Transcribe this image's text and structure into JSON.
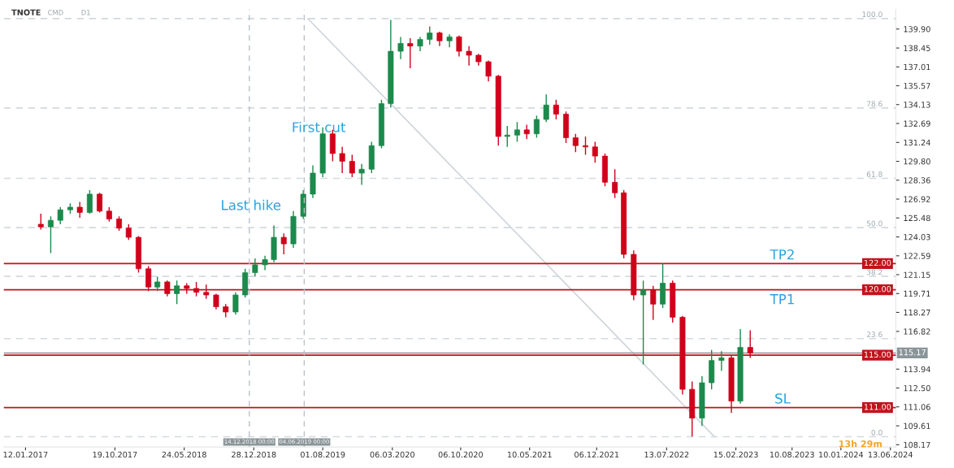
{
  "chart_data": {
    "type": "candlestick",
    "title": "TNOTE",
    "annotations": [
      "CMD",
      "D1",
      "13h 29m",
      "Last hike",
      "First cut",
      "TP2",
      "TP1",
      "SL",
      {
        "text": "100.0",
        "x": "2024-05-20",
        "y": 140.7
      },
      {
        "text": "78.6",
        "x": "2024-05-20",
        "y": 133.87
      },
      {
        "text": "61.8",
        "x": "2024-05-20",
        "y": 128.5
      },
      {
        "text": "50.0",
        "x": "2024-05-20",
        "y": 124.74
      },
      {
        "text": "38.2",
        "x": "2024-05-20",
        "y": 121.02
      },
      {
        "text": "23.6",
        "x": "2024-05-20",
        "y": 116.27
      },
      {
        "text": "0.0",
        "x": "2024-05-20",
        "y": 108.78
      }
    ],
    "series": [
      {
        "type": "line",
        "color": "#cfd6dc",
        "x": [
          "2019-06-15",
          "2022-12-10"
        ],
        "values": [
          140.7,
          108.78
        ]
      },
      {
        "x": [
          "2017-03",
          "2017-04",
          "2017-05",
          "2017-06",
          "2017-07",
          "2017-08",
          "2017-09",
          "2017-10",
          "2017-11",
          "2017-12",
          "2018-01",
          "2018-02",
          "2018-03",
          "2018-04",
          "2018-05",
          "2018-06",
          "2018-07",
          "2018-08",
          "2018-09",
          "2018-10",
          "2018-11",
          "2018-12",
          "2019-01",
          "2019-02",
          "2019-03",
          "2019-04",
          "2019-05",
          "2019-06",
          "2019-07",
          "2019-08",
          "2019-09",
          "2019-10",
          "2019-11",
          "2019-12",
          "2020-01",
          "2020-02",
          "2020-03",
          "2020-04",
          "2020-05",
          "2020-06",
          "2020-07",
          "2020-08",
          "2020-09",
          "2020-10",
          "2020-11",
          "2020-12",
          "2021-01",
          "2021-02",
          "2021-03",
          "2021-04",
          "2021-05",
          "2021-06",
          "2021-07",
          "2021-08",
          "2021-09",
          "2021-10",
          "2021-11",
          "2021-12",
          "2022-01",
          "2022-02",
          "2022-03",
          "2022-04",
          "2022-05",
          "2022-06",
          "2022-07",
          "2022-08",
          "2022-09",
          "2022-10",
          "2022-11",
          "2022-12",
          "2023-01",
          "2023-02",
          "2023-03",
          "2023-04"
        ],
        "ohlc": [
          [
            125.0,
            125.8,
            124.6,
            124.8
          ],
          [
            124.8,
            125.6,
            122.8,
            125.3
          ],
          [
            125.3,
            126.3,
            125.0,
            126.1
          ],
          [
            126.1,
            126.6,
            125.8,
            126.3
          ],
          [
            126.3,
            126.7,
            125.5,
            125.9
          ],
          [
            125.9,
            127.6,
            125.8,
            127.3
          ],
          [
            127.3,
            127.4,
            125.9,
            126.0
          ],
          [
            126.0,
            126.3,
            125.2,
            125.4
          ],
          [
            125.4,
            125.6,
            124.5,
            124.7
          ],
          [
            124.7,
            125.0,
            123.8,
            124.0
          ],
          [
            124.0,
            124.1,
            121.3,
            121.6
          ],
          [
            121.6,
            121.8,
            119.9,
            120.2
          ],
          [
            120.2,
            121.0,
            119.9,
            120.6
          ],
          [
            120.6,
            120.7,
            119.5,
            119.7
          ],
          [
            119.7,
            120.7,
            118.9,
            120.3
          ],
          [
            120.3,
            120.5,
            119.7,
            120.1
          ],
          [
            120.1,
            120.6,
            119.5,
            119.8
          ],
          [
            119.8,
            120.4,
            119.3,
            119.6
          ],
          [
            119.6,
            119.7,
            118.5,
            118.7
          ],
          [
            118.7,
            118.9,
            117.9,
            118.3
          ],
          [
            118.3,
            119.8,
            118.1,
            119.6
          ],
          [
            119.6,
            121.6,
            119.4,
            121.3
          ],
          [
            121.3,
            122.4,
            121.0,
            121.9
          ],
          [
            121.9,
            122.6,
            121.5,
            122.3
          ],
          [
            122.3,
            124.9,
            122.1,
            124.0
          ],
          [
            124.0,
            124.3,
            122.7,
            123.5
          ],
          [
            123.5,
            126.0,
            123.2,
            125.6
          ],
          [
            125.6,
            127.6,
            125.4,
            127.3
          ],
          [
            127.3,
            129.5,
            127.0,
            128.9
          ],
          [
            128.9,
            132.4,
            128.6,
            131.9
          ],
          [
            131.9,
            132.2,
            129.8,
            130.4
          ],
          [
            130.4,
            130.9,
            128.9,
            129.8
          ],
          [
            129.8,
            130.3,
            128.6,
            128.9
          ],
          [
            128.9,
            129.6,
            128.0,
            129.2
          ],
          [
            129.2,
            131.3,
            128.9,
            131.0
          ],
          [
            131.0,
            134.5,
            130.8,
            134.2
          ],
          [
            134.2,
            140.6,
            133.9,
            138.2
          ],
          [
            138.2,
            139.3,
            137.6,
            138.8
          ],
          [
            138.8,
            139.2,
            136.9,
            138.6
          ],
          [
            138.6,
            139.3,
            138.2,
            139.1
          ],
          [
            139.1,
            140.1,
            138.7,
            139.6
          ],
          [
            139.6,
            139.7,
            138.6,
            139.0
          ],
          [
            139.0,
            139.5,
            138.5,
            139.3
          ],
          [
            139.3,
            139.4,
            137.8,
            138.2
          ],
          [
            138.2,
            138.6,
            137.1,
            137.9
          ],
          [
            137.9,
            138.0,
            137.1,
            137.4
          ],
          [
            137.4,
            137.5,
            135.9,
            136.3
          ],
          [
            136.3,
            136.4,
            131.0,
            131.7
          ],
          [
            131.7,
            132.5,
            130.9,
            131.8
          ],
          [
            131.8,
            132.8,
            131.3,
            132.2
          ],
          [
            132.2,
            132.6,
            131.5,
            131.9
          ],
          [
            131.9,
            133.3,
            131.6,
            133.0
          ],
          [
            133.0,
            134.9,
            132.8,
            134.1
          ],
          [
            134.1,
            134.5,
            133.0,
            133.4
          ],
          [
            133.4,
            133.6,
            131.2,
            131.6
          ],
          [
            131.6,
            131.9,
            130.5,
            131.0
          ],
          [
            131.0,
            131.7,
            130.3,
            130.9
          ],
          [
            130.9,
            131.3,
            129.7,
            130.2
          ],
          [
            130.2,
            130.4,
            127.9,
            128.2
          ],
          [
            128.2,
            129.2,
            127.0,
            127.4
          ],
          [
            127.4,
            127.6,
            122.4,
            122.7
          ],
          [
            122.7,
            123.0,
            119.2,
            119.6
          ],
          [
            119.6,
            120.7,
            114.3,
            120.0
          ],
          [
            120.0,
            120.3,
            117.7,
            118.9
          ],
          [
            118.9,
            122.0,
            118.6,
            120.5
          ],
          [
            120.5,
            120.7,
            117.5,
            117.9
          ],
          [
            117.9,
            118.0,
            112.0,
            112.4
          ],
          [
            112.4,
            113.0,
            108.8,
            110.2
          ],
          [
            110.2,
            113.4,
            109.6,
            112.9
          ],
          [
            112.9,
            115.4,
            112.4,
            114.6
          ],
          [
            114.6,
            115.3,
            113.8,
            114.8
          ],
          [
            114.8,
            115.0,
            110.6,
            111.5
          ],
          [
            111.5,
            117.0,
            111.3,
            115.6
          ],
          [
            115.6,
            116.9,
            114.8,
            115.17
          ]
        ],
        "colors": [
          "#d0021b",
          "#1b8a4c",
          "#1b8a4c",
          "#1b8a4c",
          "#d0021b",
          "#1b8a4c",
          "#d0021b",
          "#d0021b",
          "#d0021b",
          "#d0021b",
          "#d0021b",
          "#d0021b",
          "#1b8a4c",
          "#d0021b",
          "#1b8a4c",
          "#d0021b",
          "#d0021b",
          "#d0021b",
          "#d0021b",
          "#d0021b",
          "#1b8a4c",
          "#1b8a4c",
          "#1b8a4c",
          "#1b8a4c",
          "#1b8a4c",
          "#d0021b",
          "#1b8a4c",
          "#1b8a4c",
          "#1b8a4c",
          "#1b8a4c",
          "#d0021b",
          "#d0021b",
          "#d0021b",
          "#1b8a4c",
          "#1b8a4c",
          "#1b8a4c",
          "#1b8a4c",
          "#1b8a4c",
          "#d0021b",
          "#1b8a4c",
          "#1b8a4c",
          "#d0021b",
          "#1b8a4c",
          "#d0021b",
          "#d0021b",
          "#d0021b",
          "#d0021b",
          "#d0021b",
          "#1b8a4c",
          "#1b8a4c",
          "#d0021b",
          "#1b8a4c",
          "#1b8a4c",
          "#d0021b",
          "#d0021b",
          "#d0021b",
          "#d0021b",
          "#d0021b",
          "#d0021b",
          "#d0021b",
          "#d0021b",
          "#d0021b",
          "#1b8a4c",
          "#d0021b",
          "#1b8a4c",
          "#d0021b",
          "#d0021b",
          "#d0021b",
          "#1b8a4c",
          "#1b8a4c",
          "#1b8a4c",
          "#d0021b",
          "#1b8a4c",
          "#d0021b"
        ]
      }
    ],
    "ref_lines": [
      {
        "axis": "y",
        "value": 122.0,
        "label": "122.00",
        "color": "#c0141c",
        "line_style": "solid"
      },
      {
        "axis": "y",
        "value": 120.0,
        "label": "120.00",
        "color": "#c0141c",
        "line_style": "solid"
      },
      {
        "axis": "y",
        "value": 115.0,
        "label": "115.00",
        "color": "#c0141c",
        "line_style": "solid"
      },
      {
        "axis": "y",
        "value": 111.0,
        "label": "111.00",
        "color": "#c0141c",
        "line_style": "solid"
      },
      {
        "axis": "y",
        "value": 115.17,
        "label": "115.17",
        "color": "#8a9599",
        "line_style": "solid"
      },
      {
        "axis": "y",
        "value": 140.7,
        "color": "#d3dadf",
        "line_style": "dashed"
      },
      {
        "axis": "y",
        "value": 133.87,
        "color": "#d3dadf",
        "line_style": "dashed"
      },
      {
        "axis": "y",
        "value": 128.5,
        "color": "#d3dadf",
        "line_style": "dashed"
      },
      {
        "axis": "y",
        "value": 124.74,
        "color": "#d3dadf",
        "line_style": "dashed"
      },
      {
        "axis": "y",
        "value": 121.02,
        "color": "#d3dadf",
        "line_style": "dashed"
      },
      {
        "axis": "y",
        "value": 116.27,
        "color": "#d3dadf",
        "line_style": "dashed"
      },
      {
        "axis": "y",
        "value": 108.78,
        "color": "#d3dadf",
        "line_style": "dashed"
      },
      {
        "axis": "x",
        "value": "2018-12-14",
        "label": "14.12.2018 00:00",
        "color": "#b8c2c8",
        "line_style": "dashed"
      },
      {
        "axis": "x",
        "value": "2019-06-04",
        "label": "04.06.2019 00:00",
        "color": "#b8c2c8",
        "line_style": "dashed"
      }
    ],
    "xlim": [
      "2016-11-05",
      "2024-06-30"
    ],
    "xticks": [
      {
        "value": "2017-01-12",
        "label": "12.01.2017"
      },
      {
        "value": "2017-10-19",
        "label": "19.10.2017"
      },
      {
        "value": "2018-05-24",
        "label": "24.05.2018"
      },
      {
        "value": "2018-12-28",
        "label": "28.12.2018"
      },
      {
        "value": "2019-08-01",
        "label": "01.08.2019"
      },
      {
        "value": "2020-03-06",
        "label": "06.03.2020"
      },
      {
        "value": "2020-10-06",
        "label": "06.10.2020"
      },
      {
        "value": "2021-05-10",
        "label": "10.05.2021"
      },
      {
        "value": "2021-12-06",
        "label": "06.12.2021"
      },
      {
        "value": "2022-07-13",
        "label": "13.07.2022"
      },
      {
        "value": "2023-02-15",
        "label": "15.02.2023"
      },
      {
        "value": "2023-08-10",
        "label": "10.08.2023"
      },
      {
        "value": "2024-01-10",
        "label": "10.01.2024"
      },
      {
        "value": "2024-06-13",
        "label": "13.06.2024"
      }
    ],
    "ylim": [
      108.0,
      141.4
    ],
    "yticks": [
      {
        "value": 139.9,
        "label": "139.90"
      },
      {
        "value": 138.45,
        "label": "138.45"
      },
      {
        "value": 137.01,
        "label": "137.01"
      },
      {
        "value": 135.57,
        "label": "135.57"
      },
      {
        "value": 134.13,
        "label": "134.13"
      },
      {
        "value": 132.69,
        "label": "132.69"
      },
      {
        "value": 131.24,
        "label": "131.24"
      },
      {
        "value": 129.8,
        "label": "129.80"
      },
      {
        "value": 128.36,
        "label": "128.36"
      },
      {
        "value": 126.92,
        "label": "126.92"
      },
      {
        "value": 125.48,
        "label": "125.48"
      },
      {
        "value": 124.03,
        "label": "124.03"
      },
      {
        "value": 122.59,
        "label": "122.59"
      },
      {
        "value": 121.15,
        "label": "121.15"
      },
      {
        "value": 119.71,
        "label": "119.71"
      },
      {
        "value": 118.27,
        "label": "118.27"
      },
      {
        "value": 116.82,
        "label": "116.82"
      },
      {
        "value": 113.94,
        "label": "113.94"
      },
      {
        "value": 112.5,
        "label": "112.50"
      },
      {
        "value": 111.06,
        "label": "111.06"
      },
      {
        "value": 109.61,
        "label": "109.61"
      },
      {
        "value": 108.17,
        "label": "108.17"
      }
    ],
    "grid": false,
    "legend": false
  }
}
